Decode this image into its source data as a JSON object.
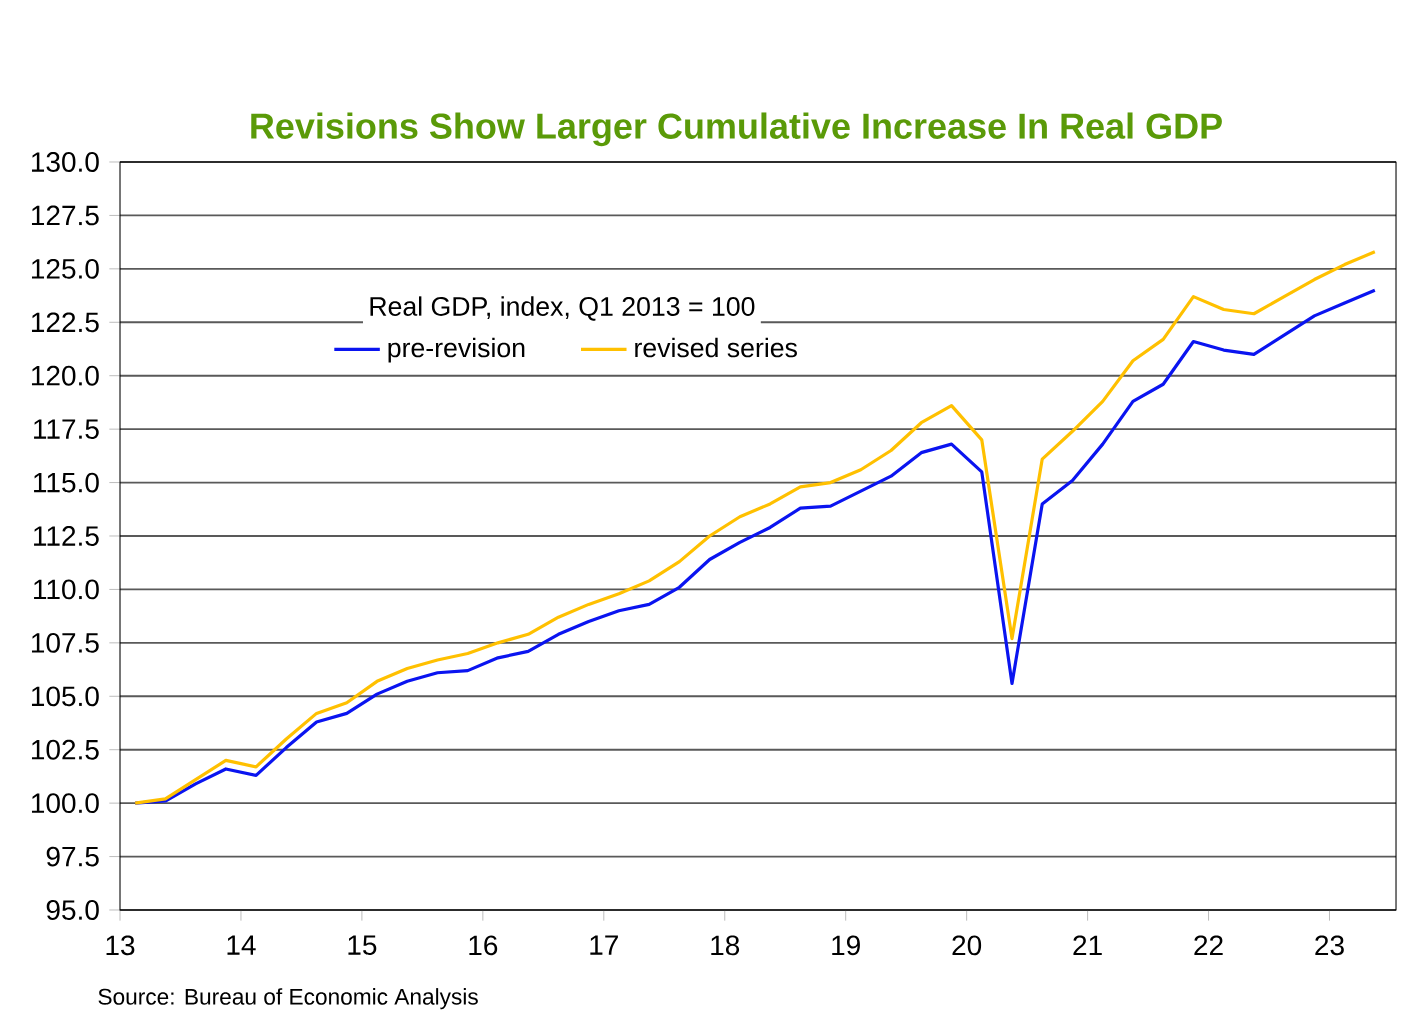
{
  "chart_data": {
    "type": "line",
    "title": "Revisions Show Larger Cumulative Increase In Real GDP",
    "legend_title": "Real GDP, index, Q1 2013 = 100",
    "x": [
      13.125,
      13.375,
      13.625,
      13.875,
      14.125,
      14.375,
      14.625,
      14.875,
      15.125,
      15.375,
      15.625,
      15.875,
      16.125,
      16.375,
      16.625,
      16.875,
      17.125,
      17.375,
      17.625,
      17.875,
      18.125,
      18.375,
      18.625,
      18.875,
      19.125,
      19.375,
      19.625,
      19.875,
      20.125,
      20.375,
      20.625,
      20.875,
      21.125,
      21.375,
      21.625,
      21.875,
      22.125,
      22.375,
      22.625,
      22.875,
      23.125,
      23.375
    ],
    "series": [
      {
        "name": "pre-revision",
        "color": "#0a14f0",
        "values": [
          100.0,
          100.1,
          100.9,
          101.6,
          101.3,
          102.6,
          103.8,
          104.2,
          105.1,
          105.7,
          106.1,
          106.2,
          106.8,
          107.1,
          107.9,
          108.5,
          109.0,
          109.3,
          110.1,
          111.4,
          112.2,
          112.9,
          113.8,
          113.9,
          114.6,
          115.3,
          116.4,
          116.8,
          115.5,
          105.6,
          114.0,
          115.1,
          116.8,
          118.8,
          119.6,
          121.6,
          121.2,
          121.0,
          121.9,
          122.8,
          123.4,
          124.0
        ]
      },
      {
        "name": "revised series",
        "color": "#ffc000",
        "values": [
          100.0,
          100.2,
          101.1,
          102.0,
          101.7,
          103.0,
          104.2,
          104.7,
          105.7,
          106.3,
          106.7,
          107.0,
          107.5,
          107.9,
          108.7,
          109.3,
          109.8,
          110.4,
          111.3,
          112.5,
          113.4,
          114.0,
          114.8,
          115.0,
          115.6,
          116.5,
          117.8,
          118.6,
          117.0,
          107.7,
          116.1,
          117.4,
          118.8,
          120.7,
          121.7,
          123.7,
          123.1,
          122.9,
          123.7,
          124.5,
          125.2,
          125.8
        ]
      }
    ],
    "xlim": [
      13,
      23.55
    ],
    "xticks": [
      13,
      14,
      15,
      16,
      17,
      18,
      19,
      20,
      21,
      22,
      23
    ],
    "ylim": [
      95,
      130
    ],
    "yticks": [
      {
        "value": 95,
        "label": "95.0"
      },
      {
        "value": 97.5,
        "label": "97.5"
      },
      {
        "value": 100,
        "label": "100.0"
      },
      {
        "value": 102.5,
        "label": "102.5"
      },
      {
        "value": 105,
        "label": "105.0"
      },
      {
        "value": 107.5,
        "label": "107.5"
      },
      {
        "value": 110,
        "label": "110.0"
      },
      {
        "value": 112.5,
        "label": "112.5"
      },
      {
        "value": 115,
        "label": "115.0"
      },
      {
        "value": 117.5,
        "label": "117.5"
      },
      {
        "value": 120,
        "label": "120.0"
      },
      {
        "value": 122.5,
        "label": "122.5"
      },
      {
        "value": 125,
        "label": "125.0"
      },
      {
        "value": 127.5,
        "label": "127.5"
      },
      {
        "value": 130,
        "label": "130.0"
      }
    ],
    "grid": "y",
    "legend": "top left",
    "marker": "none",
    "line_style": "solid",
    "annotations": [
      "Source: Bureau of Economic Analysis"
    ]
  }
}
